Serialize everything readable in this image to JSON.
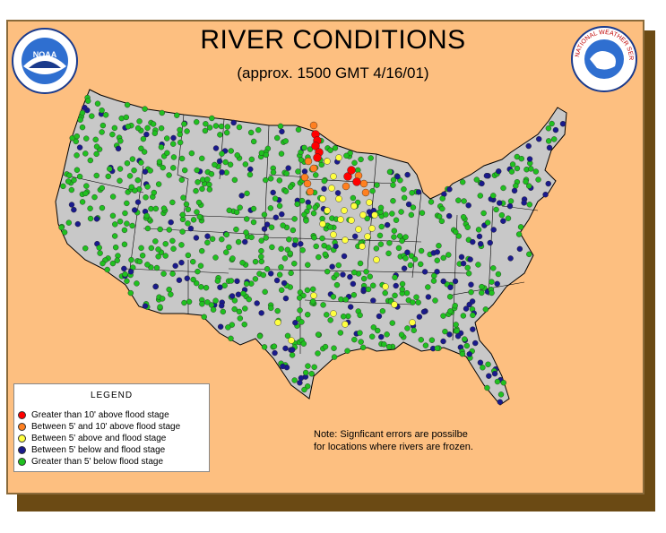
{
  "title": "RIVER CONDITIONS",
  "subtitle": "(approx. 1500 GMT  4/16/01)",
  "logos": {
    "noaa": {
      "text": "NOAA",
      "icon": "noaa-logo"
    },
    "nws": {
      "text": "NATIONAL WEATHER SERVICE",
      "icon": "nws-logo"
    }
  },
  "legend": {
    "title": "LEGEND",
    "items": [
      {
        "label": "Greater than 10' above flood stage",
        "color": "#ff0000"
      },
      {
        "label": "Between 5' and 10' above flood stage",
        "color": "#ff8020"
      },
      {
        "label": "Between 5' above and flood stage",
        "color": "#ffff40"
      },
      {
        "label": "Between 5' below and flood stage",
        "color": "#1a1a8c"
      },
      {
        "label": "Greater than 5' below flood stage",
        "color": "#20c020"
      }
    ]
  },
  "note": {
    "line1": "Note: Signficant errors are possilbe",
    "line2": "for locations where rivers are frozen."
  },
  "colors": {
    "background": "#fdbf80",
    "land": "#c8c8c8",
    "border": "#000000"
  }
}
